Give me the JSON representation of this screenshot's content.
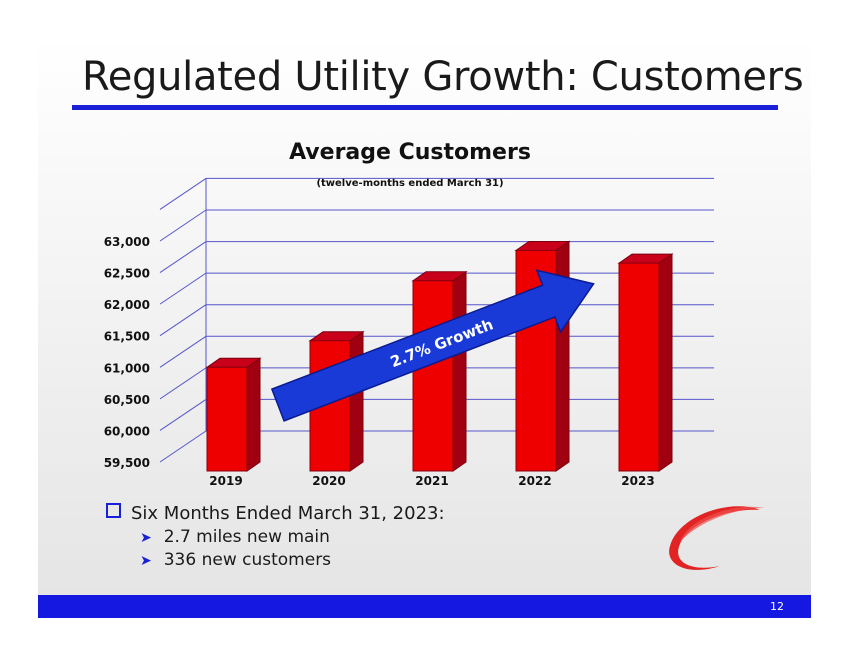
{
  "slide": {
    "title": "Regulated Utility Growth: Customers",
    "page_number": "12"
  },
  "chart_data": {
    "type": "bar",
    "title": "Average Customers",
    "subtitle": "(twelve-months ended March 31)",
    "categories": [
      "2019",
      "2020",
      "2021",
      "2022",
      "2023"
    ],
    "values": [
      61000,
      61420,
      62370,
      62850,
      62650
    ],
    "ylim": [
      59500,
      63000
    ],
    "yticks": [
      59500,
      60000,
      60500,
      61000,
      61500,
      62000,
      62500,
      63000
    ],
    "ytick_labels": [
      "59,500",
      "60,000",
      "60,500",
      "61,000",
      "61,500",
      "62,000",
      "62,500",
      "63,000"
    ],
    "xlabel": "",
    "ylabel": "",
    "bar_color": "#ee0000",
    "annotation": "2.7% Growth",
    "annotation_color": "#1a3ad8"
  },
  "bullets": {
    "heading": "Six Months Ended March 31, 2023:",
    "items": [
      "2.7 miles new main",
      "336 new customers"
    ]
  },
  "colors": {
    "accent": "#1a20d8",
    "bar": "#ee0000"
  }
}
